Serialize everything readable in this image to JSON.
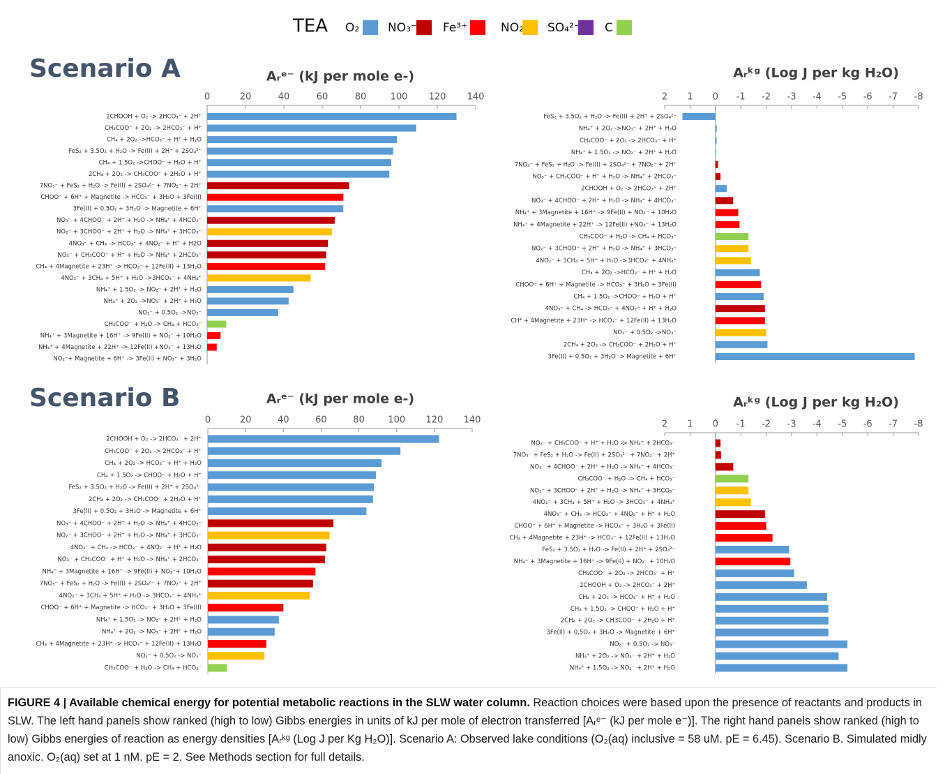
{
  "legend": {
    "title": "TEA",
    "items": [
      {
        "name": "O₂",
        "color": "#5b9bd5"
      },
      {
        "name": "NO₃⁻",
        "color": "#c00000"
      },
      {
        "name": "Fe³⁺",
        "color": "#ff0000"
      },
      {
        "name": "NO₂⁻",
        "color": "#ffc000"
      },
      {
        "name": "SO₄²⁻",
        "color": "#7030a0"
      },
      {
        "name": "C",
        "color": "#92d050"
      }
    ]
  },
  "chart_data": [
    {
      "type": "bar",
      "orientation": "horizontal",
      "title": "Scenario A",
      "xlabel": "Aᵣᵉ⁻ (kJ per mole e-)",
      "xlim": [
        0,
        140
      ],
      "xticks": [
        0,
        20,
        40,
        60,
        80,
        100,
        120,
        140
      ],
      "categories": [
        "2CHOOH + O₂ -> 2HCO₃⁻ + 2H⁺",
        "CH₃COO⁻ + 2O₂ -> 2HCO₃⁻ +  H⁺",
        "CH₄ + 2O₂ ->HCO₃⁻ + H⁺ + H₂O",
        "FeS₂ + 3.5O₂ + H₂O -> Fe(II) + 2H⁺ + 2SO₄²⁻",
        "CH₄ + 1.5O₂ ->CHOO⁻ + H₂O + H⁺",
        "2CH₄ + 2O₂ -> CH₃COO⁻ + 2H₂O + H⁺",
        "7NO₃⁻ + FeS₂ + H₂O -> Fe(II) + 2SO₄²⁻ + 7NO₂⁻ + 2H⁺",
        "CHOO⁻ + 6H⁺ + Magnetite -> HCO₃⁻ + 3H₂O + 3Fe(II)",
        "3Fe(II) + 0.5O₂ + 3H₂O -> Magnetite + 6H⁺",
        "NO₃⁻ + 4CHOO⁻ + 2H⁺ + H₂O -> NH₄⁺ + 4HCO₃⁻",
        "NO₂⁻ + 3CHOO⁻ + 2H⁺ + H₂O -> NH₄⁺ + 3HCO₃⁻",
        "4NO₃⁻ + CH₄ -> HCO₃⁻ + 4NO₂⁻ + H⁺ + H2O",
        "NO₃⁻ + CH₃COO⁻ + H⁺ + H₂O -> NH₄⁺ + 2HCO₃⁻",
        "CH₄ + 4Magnetite + 23H⁺ -> HCO₃⁻ + 12Fe(II) + 13H₂O",
        "4NO₂⁻ + 3CH₄ + 5H⁺ + H₂O ->3HCO₃⁻ + 4NH₄⁺",
        "NH₄⁺ + 1.5O₂ -> NO₂⁻ + 2H⁺ + H₂O",
        "NH₄⁺ + 2O₂ ->NO₃⁻ + 2H⁺ + H₂O",
        "NO₂⁻ + 0.5O₂ ->NO₃⁻",
        "CH₃COO⁻ + H₂O -> CH₄ + HCO₃⁻",
        "NH₄⁺ + 3Magnetite + 16H⁺ -> 9Fe(II) + NO₂⁻ + 10H₂O",
        "NH₄⁺ + 4Magnetite + 22H⁺ -> 12Fe(II) +NO₃⁻ + 13H₂O",
        "NO₂⁻+ Magnetite + 6H⁺ -> 3Fe(II) + NO₃⁻ + 3H₂O"
      ],
      "values": [
        130,
        109,
        99,
        97,
        96,
        95,
        74,
        71,
        71,
        66.5,
        65,
        63,
        62,
        61.5,
        54,
        45,
        42.5,
        37,
        10,
        7,
        5,
        0
      ],
      "colors": [
        "#5b9bd5",
        "#5b9bd5",
        "#5b9bd5",
        "#5b9bd5",
        "#5b9bd5",
        "#5b9bd5",
        "#c00000",
        "#ff0000",
        "#5b9bd5",
        "#c00000",
        "#ffc000",
        "#c00000",
        "#c00000",
        "#ff0000",
        "#ffc000",
        "#5b9bd5",
        "#5b9bd5",
        "#5b9bd5",
        "#92d050",
        "#ff0000",
        "#ff0000",
        "#ff0000"
      ]
    },
    {
      "type": "bar",
      "orientation": "horizontal",
      "xlabel": "Aᵣᵏᵍ (Log J per kg H₂O)",
      "xlim": [
        2,
        -8
      ],
      "xticks": [
        2,
        1,
        0,
        -1,
        -2,
        -3,
        -4,
        -5,
        -6,
        -7,
        -8
      ],
      "categories": [
        "FeS₂ + 3.5O₂ + H₂O -> Fe(II) + 2H⁺ + 2SO₄²⁻",
        "NH₄⁺ + 2O₂ ->NO₃⁻ + 2H⁺ + H₂O",
        "CH₃COO⁻ + 2O₂ -> 2HCO₃⁻ + H⁺",
        "NH₄⁺ + 1.5O₂ -> NO₂⁻ + 2H⁺ + H₂O",
        "7NO₃⁻ + FeS₂ + H₂O -> Fe(II) + 2SO₄²⁻ + 7NO₂⁻ + 2H⁺",
        "NO₃⁻ + CH₃COO⁻ + H⁺ + H₂O -> NH₄⁺ + 2HCO₃⁻",
        "2CHOOH + O₂ -> 2HCO₃⁻ + 2H⁺",
        "NO₃⁻ + 4CHOO⁻ + 2H⁺ + H₂O -> NH₄⁺ + 4HCO₃⁻",
        "NH₄⁺ + 3Magnetite + 16H⁺ -> 9Fe(II) + NO₂⁻ + 10H₂O",
        "NH₄⁺ + 4Magnetite + 22H⁺ -> 12Fe(II) +NO₃⁻ + 13H₂O",
        "CH₃COO⁻ + H₂O -> CH₄ + HCO₃⁻",
        "NO₂⁻ + 3CHOO⁻ + 2H⁺ + H₂O -> NH₄⁺ + 3HCO₃⁻",
        "4NO₂⁻ + 3CH₄ + 5H⁺ + H₂O ->3HCO₃⁻ + 4NH₄⁺",
        "CH₄ + 2O₂ ->HCO₃⁻ + H⁺ + H₂O",
        "CHOO⁻ + 6H⁺ + Magnetite -> HCO₃⁻ + 3H₂O + 3Fe(II)",
        "CH₄ + 1.5O₂ ->CHOO⁻ + H₂O + H⁺",
        "4NO₃⁻ + CH₄ -> HCO₃⁻ + 4NO₂⁻ + H⁺ + H₂O",
        "CH⁴ + 4Magnetite + 23H⁺ -> HCO₃⁻ + 12Fe(II) + 13H₂O",
        "NO₂⁻ + 0.5O₂ ->NO₃⁻",
        "2CH₄ + 2O₂ -> CH₃COO⁻ + 2H₂O + H⁺",
        "3Fe(II) + 0.5O₂ + 3H₂O -> Magnetite + 6H⁺"
      ],
      "values": [
        1.3,
        -0.05,
        -0.05,
        -0.02,
        -0.1,
        -0.2,
        -0.45,
        -0.7,
        -0.9,
        -0.95,
        -1.3,
        -1.3,
        -1.4,
        -1.75,
        -1.8,
        -1.9,
        -1.95,
        -1.95,
        -2.0,
        -2.05,
        -7.85
      ],
      "colors": [
        "#5b9bd5",
        "#5b9bd5",
        "#5b9bd5",
        "#5b9bd5",
        "#c00000",
        "#c00000",
        "#5b9bd5",
        "#c00000",
        "#ff0000",
        "#ff0000",
        "#92d050",
        "#ffc000",
        "#ffc000",
        "#5b9bd5",
        "#ff0000",
        "#5b9bd5",
        "#c00000",
        "#ff0000",
        "#ffc000",
        "#5b9bd5",
        "#5b9bd5"
      ]
    },
    {
      "type": "bar",
      "orientation": "horizontal",
      "title": "Scenario B",
      "xlabel": "Aᵣᵉ⁻ (kJ per mole e-)",
      "xlim": [
        0,
        140
      ],
      "xticks": [
        0,
        20,
        40,
        60,
        80,
        100,
        120,
        140
      ],
      "categories": [
        "2CHOOH + O₂ -> 2HCO₃⁻ + 2H⁺",
        "CH₃COO⁻ + 2O₂ -> 2HCO₃⁻ +  H⁺",
        "CH₄ + 2O₂ -> HCO₃⁻ + H⁺ + H₂O",
        "CH₄ + 1.5O₂ -> CHOO⁻ + H₂O + H⁺",
        "FeS₂ + 3.5O₂ + H₂O -> Fe(II) + 2H⁺ + 2SO₄²⁻",
        "2CH₄ + 2O₂ -> CH₃COO⁻ + 2H₂O + H⁺",
        "3Fe(II) + 0.5O₂ + 3H₂O -> Magnetite + 6H⁺",
        "NO₃⁻ + 4CHOO⁻ + 2H⁺ + H₂O -> NH₄⁺ + 4HCO₃⁻",
        "NO₂⁻ + 3CHOO⁻ + 2H⁺ + H₂O -> NH₄⁺ + 3HCO₃⁻",
        "4NO₃⁻ + CH₄ -> HCO₃⁻ + 4NO₂⁻ + H⁺ + H₂O",
        "NO₃⁻ + CH₃COO⁻ + H⁺ + H₂O -> NH₄⁺ + 2HCO₃⁻",
        "NH₄⁺ + 3Magnetite + 16H⁺ -> 9Fe(II) + NO₂⁻+ 10H₂O",
        "7NO₃⁻ + FeS₂ + H₂O -> Fe(II) + 2SO₄²⁻ + 7NO₂⁻ + 2H⁺",
        "4NO₂⁻ + 3CH₄ + 5H⁺ + H₂O -> 3HCO₃⁻ + 4NH₄⁺",
        "CHOO⁻ + 6H⁺ + Magnetite -> HCO₃⁻ + 3H₂O + 3Fe(II)",
        "NH₄⁺ + 1.5O₂ -> NO₂⁻ + 2H⁺ + H₂O",
        "NH₄⁺ + 2O₂ -> NO₃⁻ + 2H⁺ + H₂O",
        "CH₄ + 4Magnetite + 23H⁺ -> HCO₃⁻ + 12Fe(II) + 13H₂O",
        "NO₂⁻ + 0.5O₂ -> NO₃⁻",
        "CH₃COO⁻ + H₂O -> CH₄ + HCO₃⁻"
      ],
      "values": [
        122.5,
        102,
        92,
        89,
        88,
        87.5,
        84,
        66.5,
        64.5,
        62.7,
        62,
        57,
        55.7,
        54,
        40,
        37.6,
        35.4,
        31,
        30,
        10
      ],
      "colors": [
        "#5b9bd5",
        "#5b9bd5",
        "#5b9bd5",
        "#5b9bd5",
        "#5b9bd5",
        "#5b9bd5",
        "#5b9bd5",
        "#c00000",
        "#ffc000",
        "#c00000",
        "#c00000",
        "#ff0000",
        "#c00000",
        "#ffc000",
        "#ff0000",
        "#5b9bd5",
        "#5b9bd5",
        "#ff0000",
        "#ffc000",
        "#92d050"
      ]
    },
    {
      "type": "bar",
      "orientation": "horizontal",
      "xlabel": "Aᵣᵏᵍ (Log J per kg H₂O)",
      "xlim": [
        2,
        -8
      ],
      "xticks": [
        2,
        1,
        0,
        -1,
        -2,
        -3,
        -4,
        -5,
        -6,
        -7,
        -8
      ],
      "categories": [
        "NO₃⁻ + CH₃COO⁻ + H⁺ + H₂O -> NH₄⁺ + 2HCO₃⁻",
        "7NO₃⁻ + FeS₂ + H₂O -> Fe(II) + 2SO₄²⁻ + 7NO₂⁻ + 2H⁺",
        "NO₃⁻ + 4CHOO⁻ + 2H⁺ + H₂O -> NH₄⁺ + 4HCO₃⁻",
        "CH₃COO⁻ + H₂O -> CH₄ + HCO₃⁻",
        "NO₂⁻ + 3CHOO⁻ + 2H⁺ + H₂O -> NH₄⁺ + 3HCO₃⁻",
        "4NO₂⁻ + 3CH₄ + 5H⁺ + H₂O -> 3HCO₃⁻ + 4NH₄⁺",
        "4NO₃⁻ + CH₄ -> HCO₃⁻ + 4NO₂⁻ + H⁺ + H₂O",
        "CHOO⁻ + 6H⁺ + Magnetite -> HCO₃⁻ + 3H₂O + 3Fe(II)",
        "CH₄ + 4Magnetite + 23H⁺ -> HCO₃⁻ + 12Fe(II) + 13H₂O",
        "FeS₂ + 3.5O₂ + H₂O -> Fe(II) + 2H⁺ + 2SO₄²⁻",
        "NH₄⁺ + 3Magnetite + 16H⁺ -> 9Fe(II) + NO₂⁻ + 10H₂O",
        "CH₃COO⁻ + 2O₂ -> 2HCO₃⁻ + H⁺",
        "2CHOOH + O₂ -> 2HCO₃⁻ + 2H⁺",
        "CH₄ + 2O₂ -> HCO₃⁻ + H⁺ + H₂O",
        "CH₄ + 1.5O₂ -> CHOO⁻ + H₂O + H⁺",
        "2CH₄ + 2O₂ -> CH3COO⁻ + 2H₂O + H⁺",
        "3Fe(II) + 0.5O₂ + 3H₂O -> Magnetite + 6H⁺",
        "NO₂⁻ + 0.5O₂ -> NO₃⁻",
        "NH₄⁺ + 2O₂ -> NO₃⁻ + 2H⁺ + H₂O",
        "NH₄⁺ + 1.5O₂ -> NO₂⁻ + 2H⁺ + H₂O"
      ],
      "values": [
        -0.2,
        -0.22,
        -0.7,
        -1.3,
        -1.3,
        -1.4,
        -1.95,
        -2.0,
        -2.25,
        -2.9,
        -2.95,
        -3.1,
        -3.6,
        -4.4,
        -4.45,
        -4.45,
        -4.45,
        -5.2,
        -4.85,
        -5.2
      ],
      "colors": [
        "#c00000",
        "#c00000",
        "#c00000",
        "#92d050",
        "#ffc000",
        "#ffc000",
        "#c00000",
        "#ff0000",
        "#ff0000",
        "#5b9bd5",
        "#ff0000",
        "#5b9bd5",
        "#5b9bd5",
        "#5b9bd5",
        "#5b9bd5",
        "#5b9bd5",
        "#5b9bd5",
        "#5b9bd5",
        "#5b9bd5",
        "#5b9bd5"
      ]
    }
  ],
  "caption": {
    "label": "FIGURE 4 | Available chemical energy for potential metabolic reactions in the SLW water column.",
    "text": "Reaction choices were based upon the presence of reactants and products in SLW. The left hand panels show ranked (high to low) Gibbs energies in units of kJ per mole of electron transferred [Aᵣᵉ⁻ (kJ per mole e⁻)]. The right hand panels show ranked (high to low) Gibbs energies of reaction as energy densities [Aᵣᵏᵍ (Log J per Kg H₂O)]. Scenario A: Observed lake conditions (O₂(aq) inclusive = 58 uM. pE = 6.45). Scenario B. Simulated midly anoxic. O₂(aq) set at 1 nM. pE = 2. See Methods section for full details."
  }
}
